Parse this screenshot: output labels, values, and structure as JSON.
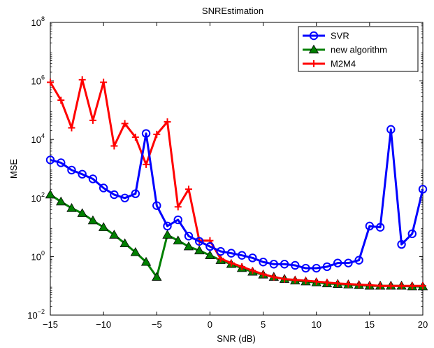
{
  "chart_data": {
    "type": "line",
    "title": "SNREstimation",
    "xlabel": "SNR (dB)",
    "ylabel": "MSE",
    "xlim": [
      -15,
      20
    ],
    "ylim": [
      0.01,
      100000000
    ],
    "yscale": "log",
    "grid": false,
    "legend_position": "top-right",
    "x_ticks": [
      -15,
      -10,
      -5,
      0,
      5,
      10,
      15,
      20
    ],
    "x_tick_labels": [
      "−15",
      "−10",
      "−5",
      "0",
      "5",
      "10",
      "15",
      "20"
    ],
    "y_ticks": [
      0.01,
      1,
      100,
      10000,
      1000000,
      100000000
    ],
    "y_tick_labels": [
      {
        "base": "10",
        "exp": "−2"
      },
      {
        "base": "10",
        "exp": "0"
      },
      {
        "base": "10",
        "exp": "2"
      },
      {
        "base": "10",
        "exp": "4"
      },
      {
        "base": "10",
        "exp": "6"
      },
      {
        "base": "10",
        "exp": "8"
      }
    ],
    "x": [
      -15,
      -14,
      -13,
      -12,
      -11,
      -10,
      -9,
      -8,
      -7,
      -6,
      -5,
      -4,
      -3,
      -2,
      -1,
      0,
      1,
      2,
      3,
      4,
      5,
      6,
      7,
      8,
      9,
      10,
      11,
      12,
      13,
      14,
      15,
      16,
      17,
      18,
      19,
      20
    ],
    "series": [
      {
        "name": "SVR",
        "color": "#0000ff",
        "marker": "circle",
        "values": [
          2000,
          1600,
          900,
          650,
          450,
          220,
          130,
          100,
          140,
          16000,
          55,
          11,
          18,
          5,
          3.3,
          2.2,
          1.5,
          1.3,
          1.1,
          0.9,
          0.65,
          0.55,
          0.55,
          0.5,
          0.4,
          0.4,
          0.45,
          0.6,
          0.6,
          0.75,
          11,
          10,
          22000,
          2.6,
          6,
          200
        ]
      },
      {
        "name": "new algorithm",
        "color": "#008000",
        "marker": "triangle",
        "values": [
          130,
          75,
          45,
          30,
          17,
          10,
          5.5,
          2.8,
          1.4,
          0.65,
          0.2,
          5.5,
          3.5,
          2.2,
          1.6,
          1.1,
          0.75,
          0.55,
          0.4,
          0.3,
          0.24,
          0.2,
          0.17,
          0.15,
          0.14,
          0.13,
          0.12,
          0.115,
          0.11,
          0.105,
          0.1,
          0.1,
          0.1,
          0.1,
          0.095,
          0.095
        ]
      },
      {
        "name": "M2M4",
        "color": "#ff0000",
        "marker": "plus",
        "values": [
          900000,
          220000,
          25000,
          1100000,
          45000,
          900000,
          6000,
          35000,
          12000,
          1400,
          15000,
          40000,
          50,
          200,
          3.5,
          3.5,
          0.85,
          0.6,
          0.45,
          0.33,
          0.25,
          0.2,
          0.17,
          0.16,
          0.15,
          0.14,
          0.13,
          0.12,
          0.115,
          0.11,
          0.105,
          0.1,
          0.1,
          0.1,
          0.1,
          0.1
        ]
      }
    ]
  }
}
